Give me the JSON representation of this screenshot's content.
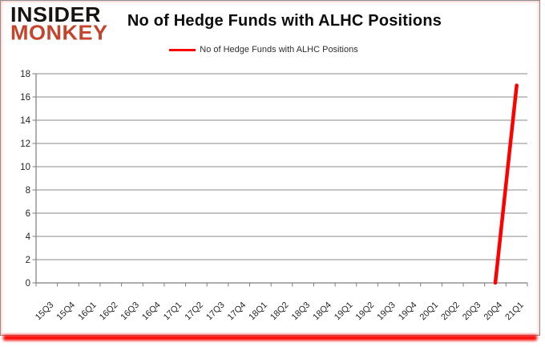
{
  "logo": {
    "line1": "INSIDER",
    "line2": "MONKEY",
    "line1_color": "#161413",
    "line2_color": "#c4452c"
  },
  "title": "No of Hedge Funds with ALHC Positions",
  "legend": {
    "label": "No of Hedge Funds with ALHC Positions",
    "line_color": "#fe0000"
  },
  "colors": {
    "grid": "#8a8a8a",
    "axis": "#7d7d7d",
    "tick_label": "#262626",
    "series": "#fe0000",
    "frame_border": "#8e8e8e",
    "bottom_glow": "#fa0a05"
  },
  "chart_data": {
    "type": "line",
    "title": "No of Hedge Funds with ALHC Positions",
    "xlabel": "",
    "ylabel": "",
    "categories": [
      "15Q3",
      "15Q4",
      "16Q1",
      "16Q2",
      "16Q3",
      "16Q4",
      "17Q1",
      "17Q2",
      "17Q3",
      "17Q4",
      "18Q1",
      "18Q2",
      "18Q3",
      "18Q4",
      "19Q1",
      "19Q2",
      "19Q3",
      "19Q4",
      "20Q1",
      "20Q2",
      "20Q3",
      "20Q4",
      "21Q1"
    ],
    "series": [
      {
        "name": "No of Hedge Funds with ALHC Positions",
        "color": "#fe0000",
        "values": [
          null,
          null,
          null,
          null,
          null,
          null,
          null,
          null,
          null,
          null,
          null,
          null,
          null,
          null,
          null,
          null,
          null,
          null,
          null,
          null,
          null,
          0,
          17
        ]
      }
    ],
    "ylim": [
      0,
      18
    ],
    "y_tick_step": 2,
    "grid": true,
    "legend_position": "top-center"
  }
}
